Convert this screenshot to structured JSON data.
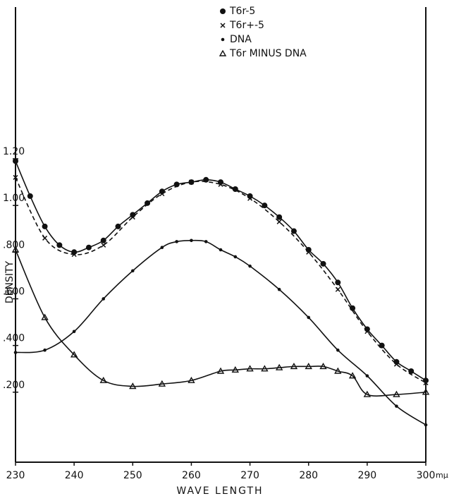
{
  "chart_data": {
    "type": "line",
    "xlabel": "WAVE LENGTH",
    "xunit": "mμ",
    "ylabel": "DENSITY",
    "xlim": [
      230,
      300
    ],
    "xticks": [
      230,
      240,
      250,
      260,
      270,
      280,
      290,
      300
    ],
    "ylim": [
      -0.1,
      1.85
    ],
    "yticks": [
      {
        "value": 0.2,
        "label": ".200"
      },
      {
        "value": 0.4,
        "label": ".400"
      },
      {
        "value": 0.6,
        "label": ".600"
      },
      {
        "value": 0.8,
        "label": ".800"
      },
      {
        "value": 1.0,
        "label": "1.00"
      },
      {
        "value": 1.2,
        "label": "1.20"
      }
    ],
    "grid": false,
    "legend": "top",
    "series": [
      {
        "name": "T6r-5",
        "color": "#111111",
        "marker": "circle",
        "dashed": false,
        "x": [
          230,
          232.5,
          235,
          237.5,
          240,
          242.5,
          245,
          247.5,
          250,
          252.5,
          255,
          257.5,
          260,
          262.5,
          265,
          267.5,
          270,
          272.5,
          275,
          277.5,
          280,
          282.5,
          285,
          287.5,
          290,
          292.5,
          295,
          297.5,
          300
        ],
        "values": [
          1.19,
          1.04,
          0.91,
          0.83,
          0.8,
          0.82,
          0.85,
          0.91,
          0.96,
          1.01,
          1.06,
          1.09,
          1.1,
          1.11,
          1.1,
          1.07,
          1.04,
          1.0,
          0.95,
          0.89,
          0.81,
          0.75,
          0.67,
          0.56,
          0.47,
          0.4,
          0.33,
          0.29,
          0.25
        ]
      },
      {
        "name": "T6r+-5",
        "color": "#111111",
        "marker": "cross",
        "dashed": true,
        "x": [
          230,
          235,
          240,
          245,
          250,
          255,
          260,
          265,
          270,
          275,
          280,
          285,
          290,
          295,
          300
        ],
        "values": [
          1.12,
          0.86,
          0.79,
          0.83,
          0.95,
          1.05,
          1.1,
          1.09,
          1.03,
          0.93,
          0.8,
          0.64,
          0.46,
          0.32,
          0.24
        ]
      },
      {
        "name": "DNA",
        "color": "#111111",
        "marker": "dot",
        "dashed": false,
        "x": [
          230,
          235,
          240,
          245,
          250,
          255,
          257.5,
          260,
          262.5,
          265,
          267.5,
          270,
          275,
          280,
          285,
          290,
          295,
          300
        ],
        "values": [
          0.37,
          0.38,
          0.46,
          0.6,
          0.72,
          0.82,
          0.845,
          0.85,
          0.845,
          0.81,
          0.78,
          0.74,
          0.64,
          0.52,
          0.38,
          0.27,
          0.14,
          0.06
        ]
      },
      {
        "name": "T6r MINUS DNA",
        "color": "#111111",
        "marker": "triangle",
        "dashed": false,
        "x": [
          230,
          235,
          240,
          245,
          250,
          255,
          260,
          265,
          267.5,
          270,
          272.5,
          275,
          277.5,
          280,
          282.5,
          285,
          287.5,
          290,
          295,
          300
        ],
        "values": [
          0.81,
          0.52,
          0.36,
          0.25,
          0.225,
          0.235,
          0.25,
          0.29,
          0.295,
          0.3,
          0.3,
          0.305,
          0.31,
          0.31,
          0.31,
          0.29,
          0.27,
          0.19,
          0.19,
          0.2
        ]
      }
    ]
  }
}
